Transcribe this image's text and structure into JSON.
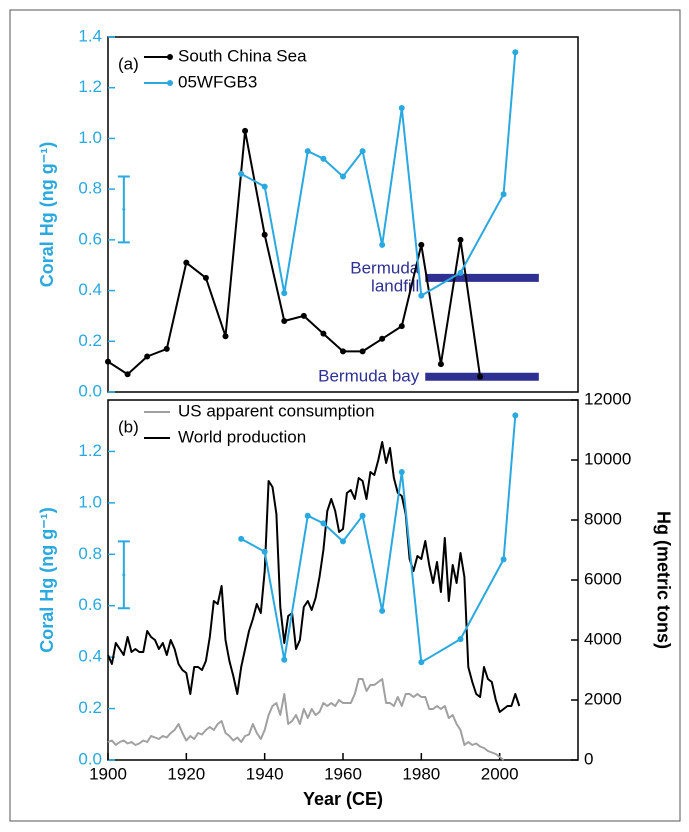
{
  "chart_data": [
    {
      "type": "line",
      "panel_label": "(a)",
      "y_label": "Coral Hg (ng g⁻¹)",
      "axis_color": "#2aa8e0",
      "xlim": [
        1900,
        2020
      ],
      "ylim": [
        0,
        1.4
      ],
      "yticks": [
        {
          "value": 0,
          "label": "0.0"
        },
        0.2,
        0.4,
        0.6,
        0.8,
        {
          "value": 1,
          "label": "1.0"
        },
        1.2,
        1.4
      ],
      "legend": "upper left",
      "series": [
        {
          "name": "South China Sea",
          "color": "#000000",
          "markers": true,
          "x": [
            1900,
            1905,
            1910,
            1915,
            1920,
            1925,
            1930,
            1935,
            1940,
            1945,
            1950,
            1955,
            1960,
            1965,
            1970,
            1975,
            1980,
            1985,
            1990,
            1995
          ],
          "values": [
            0.12,
            0.07,
            0.14,
            0.17,
            0.51,
            0.45,
            0.22,
            1.03,
            0.62,
            0.28,
            0.3,
            0.23,
            0.16,
            0.16,
            0.21,
            0.26,
            0.58,
            0.11,
            0.6,
            0.06
          ]
        },
        {
          "name": "05WFGB3",
          "color": "#2aa8e0",
          "markers": true,
          "x": [
            1934,
            1940,
            1945,
            1951,
            1955,
            1960,
            1965,
            1970,
            1975,
            1980,
            1990,
            2001,
            2004
          ],
          "values": [
            0.86,
            0.81,
            0.39,
            0.95,
            0.92,
            0.85,
            0.95,
            0.58,
            1.12,
            0.38,
            0.47,
            0.78,
            1.34
          ]
        }
      ],
      "ranges": [
        {
          "label_lines": [
            "Bermuda",
            "landfill"
          ],
          "value": 0.45,
          "x": [
            1981,
            2010
          ],
          "color": "#2e3192"
        },
        {
          "label_lines": [
            "Bermuda bay"
          ],
          "value": 0.06,
          "x": [
            1981,
            2010
          ],
          "color": "#2e3192"
        }
      ],
      "error_bar": {
        "x": 1902,
        "value": 0.72,
        "error": 0.13,
        "color": "#2aa8e0"
      }
    },
    {
      "type": "line",
      "panel_label": "(b)",
      "y_label": "Coral Hg (ng g⁻¹)",
      "axis_color": "#2aa8e0",
      "y2_label": "Hg (metric tons)",
      "x_label": "Year (CE)",
      "xlim": [
        1900,
        2020
      ],
      "xticks": [
        1900,
        1920,
        1940,
        1960,
        1980,
        2000
      ],
      "ylim": [
        0,
        1.4
      ],
      "yticks": [
        {
          "value": 0,
          "label": "0.0"
        },
        0.2,
        0.4,
        0.6,
        0.8,
        {
          "value": 1,
          "label": "1.0"
        },
        1.2
      ],
      "y2lim": [
        0,
        12000
      ],
      "y2ticks": [
        0,
        2000,
        4000,
        6000,
        8000,
        10000,
        12000
      ],
      "legend": "upper left",
      "series": [
        {
          "name": "US apparent consumption",
          "color": "#a0a0a0",
          "markers": false,
          "axis": "y2",
          "x": [
            1900,
            1901,
            1902,
            1903,
            1904,
            1905,
            1906,
            1907,
            1908,
            1909,
            1910,
            1911,
            1912,
            1913,
            1914,
            1915,
            1916,
            1917,
            1918,
            1919,
            1920,
            1921,
            1922,
            1923,
            1924,
            1925,
            1926,
            1927,
            1928,
            1929,
            1930,
            1931,
            1932,
            1933,
            1934,
            1935,
            1936,
            1937,
            1938,
            1939,
            1940,
            1941,
            1942,
            1943,
            1944,
            1945,
            1946,
            1947,
            1948,
            1949,
            1950,
            1951,
            1952,
            1953,
            1954,
            1955,
            1956,
            1957,
            1958,
            1959,
            1960,
            1961,
            1962,
            1963,
            1964,
            1965,
            1966,
            1967,
            1968,
            1969,
            1970,
            1971,
            1972,
            1973,
            1974,
            1975,
            1976,
            1977,
            1978,
            1979,
            1980,
            1981,
            1982,
            1983,
            1984,
            1985,
            1986,
            1987,
            1988,
            1989,
            1990,
            1991,
            1992,
            1993,
            1994,
            1995,
            1996,
            1997,
            1998,
            1999,
            2000,
            2001
          ],
          "values": [
            600,
            650,
            500,
            600,
            650,
            550,
            600,
            500,
            550,
            650,
            600,
            800,
            750,
            700,
            800,
            750,
            900,
            1000,
            1200,
            900,
            650,
            800,
            700,
            900,
            850,
            1000,
            1100,
            1000,
            1200,
            1300,
            900,
            800,
            650,
            750,
            600,
            800,
            850,
            1200,
            900,
            700,
            1000,
            1500,
            1800,
            1900,
            1500,
            2200,
            1200,
            1300,
            1500,
            1200,
            1700,
            1400,
            1700,
            1500,
            1600,
            1900,
            1800,
            1900,
            1800,
            2000,
            1900,
            1900,
            1900,
            2200,
            2700,
            2700,
            2300,
            2500,
            2500,
            2600,
            2700,
            1900,
            1900,
            1800,
            2100,
            1800,
            2200,
            2200,
            2100,
            2200,
            2100,
            2100,
            1700,
            1700,
            1800,
            1700,
            1800,
            1400,
            1500,
            1200,
            1000,
            500,
            600,
            500,
            550,
            450,
            400,
            300,
            250,
            200,
            100,
            0
          ]
        },
        {
          "name": "World production",
          "color": "#000000",
          "markers": false,
          "axis": "y2",
          "x": [
            1900,
            1901,
            1902,
            1903,
            1904,
            1905,
            1906,
            1907,
            1908,
            1909,
            1910,
            1911,
            1912,
            1913,
            1914,
            1915,
            1916,
            1917,
            1918,
            1919,
            1920,
            1921,
            1922,
            1923,
            1924,
            1925,
            1926,
            1927,
            1928,
            1929,
            1930,
            1931,
            1932,
            1933,
            1934,
            1935,
            1936,
            1937,
            1938,
            1939,
            1940,
            1941,
            1942,
            1943,
            1944,
            1945,
            1946,
            1947,
            1948,
            1949,
            1950,
            1951,
            1952,
            1953,
            1954,
            1955,
            1956,
            1957,
            1958,
            1959,
            1960,
            1961,
            1962,
            1963,
            1964,
            1965,
            1966,
            1967,
            1968,
            1969,
            1970,
            1971,
            1972,
            1973,
            1974,
            1975,
            1976,
            1977,
            1978,
            1979,
            1980,
            1981,
            1982,
            1983,
            1984,
            1985,
            1986,
            1987,
            1988,
            1989,
            1990,
            1991,
            1992,
            1993,
            1994,
            1995,
            1996,
            1997,
            1998,
            1999,
            2000,
            2001,
            2002,
            2003,
            2004,
            2005
          ],
          "values": [
            3500,
            3200,
            3900,
            3700,
            3500,
            4100,
            3600,
            3700,
            3600,
            3600,
            4300,
            4100,
            4000,
            3700,
            3900,
            3500,
            4000,
            3700,
            3200,
            3000,
            2900,
            2200,
            3100,
            3100,
            3000,
            3300,
            4100,
            5300,
            5200,
            5800,
            4000,
            3300,
            2800,
            2200,
            3100,
            3700,
            4300,
            4700,
            5200,
            4900,
            6300,
            9300,
            9100,
            8200,
            5100,
            3900,
            4800,
            4900,
            3700,
            4000,
            5100,
            5300,
            5000,
            5400,
            6100,
            7000,
            8300,
            8700,
            8300,
            7600,
            7700,
            8900,
            9000,
            8700,
            9400,
            9300,
            8700,
            9600,
            9500,
            10000,
            10600,
            9900,
            10400,
            9400,
            8900,
            8800,
            8200,
            6700,
            6300,
            6800,
            6700,
            7300,
            6500,
            5900,
            6600,
            5600,
            7400,
            5300,
            6500,
            5900,
            6900,
            6100,
            3100,
            2600,
            2200,
            2100,
            3100,
            2700,
            2600,
            2000,
            1600,
            1700,
            1800,
            1800,
            2200,
            1800
          ]
        },
        {
          "color": "#2aa8e0",
          "markers": true,
          "x": [
            1934,
            1940,
            1945,
            1951,
            1955,
            1960,
            1965,
            1970,
            1975,
            1980,
            1990,
            2001,
            2004
          ],
          "values": [
            0.86,
            0.81,
            0.39,
            0.95,
            0.92,
            0.85,
            0.95,
            0.58,
            1.12,
            0.38,
            0.47,
            0.78,
            1.34
          ]
        }
      ],
      "error_bar": {
        "x": 1902,
        "value": 0.72,
        "error": 0.13,
        "color": "#2aa8e0"
      }
    }
  ]
}
